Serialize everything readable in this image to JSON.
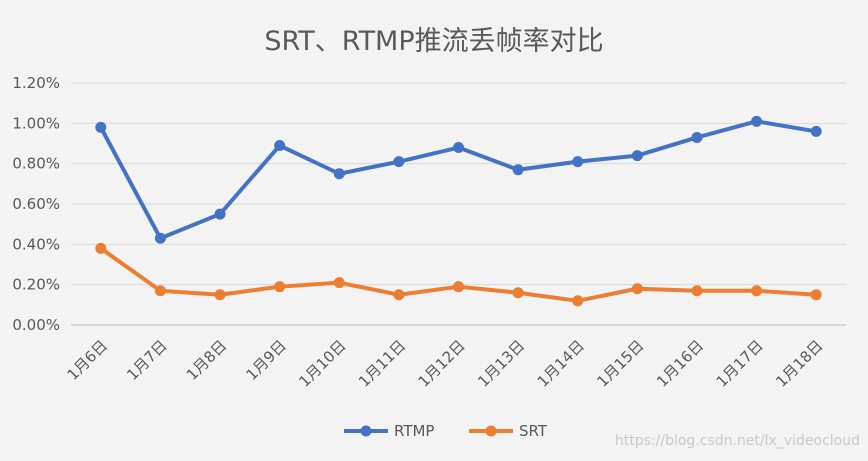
{
  "chart_data": {
    "type": "line",
    "title": "SRT、RTMP推流丢帧率对比",
    "categories": [
      "1月6日",
      "1月7日",
      "1月8日",
      "1月9日",
      "1月10日",
      "1月11日",
      "1月12日",
      "1月13日",
      "1月14日",
      "1月15日",
      "1月16日",
      "1月17日",
      "1月18日"
    ],
    "series": [
      {
        "name": "RTMP",
        "color": "#4472c4",
        "values": [
          0.98,
          0.43,
          0.55,
          0.89,
          0.75,
          0.81,
          0.88,
          0.77,
          0.81,
          0.84,
          0.93,
          1.01,
          0.96
        ]
      },
      {
        "name": "SRT",
        "color": "#ed7d31",
        "values": [
          0.38,
          0.17,
          0.15,
          0.19,
          0.21,
          0.15,
          0.19,
          0.16,
          0.12,
          0.18,
          0.17,
          0.17,
          0.15
        ]
      }
    ],
    "y_ticks": [
      "0.00%",
      "0.20%",
      "0.40%",
      "0.60%",
      "0.80%",
      "1.00%",
      "1.20%"
    ],
    "ylim": [
      0,
      1.2
    ],
    "y_unit": "%",
    "grid": true,
    "legend_position": "bottom"
  },
  "watermark": "https://blog.csdn.net/lx_videocloud"
}
